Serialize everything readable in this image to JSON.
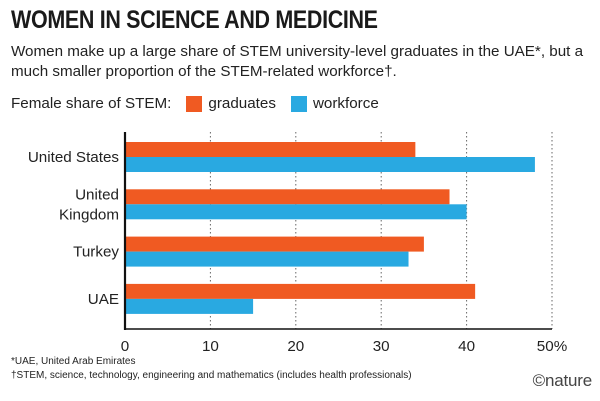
{
  "title": "WOMEN IN SCIENCE AND MEDICINE",
  "subtitle": "Women make up a large share of STEM university-level graduates in the UAE*, but a much smaller proportion of the STEM-related workforce†.",
  "legend": {
    "label": "Female share of STEM:",
    "items": [
      {
        "name": "graduates",
        "color": "#f05a22"
      },
      {
        "name": "workforce",
        "color": "#29a9e1"
      }
    ]
  },
  "chart_data": {
    "type": "bar",
    "orientation": "horizontal",
    "categories": [
      "United States",
      "United Kingdom",
      "Turkey",
      "UAE"
    ],
    "category_lines": [
      [
        "United States"
      ],
      [
        "United",
        "Kingdom"
      ],
      [
        "Turkey"
      ],
      [
        "UAE"
      ]
    ],
    "series": [
      {
        "name": "graduates",
        "color": "#f05a22",
        "values": [
          34,
          38,
          35,
          41
        ]
      },
      {
        "name": "workforce",
        "color": "#29a9e1",
        "values": [
          48,
          40,
          33.2,
          15
        ]
      }
    ],
    "xlim": [
      0,
      50
    ],
    "xticks": [
      0,
      10,
      20,
      30,
      40,
      50
    ],
    "xtick_labels": [
      "0",
      "10",
      "20",
      "30",
      "40",
      "50%"
    ],
    "grid": true
  },
  "footnotes": [
    "*UAE, United Arab Emirates",
    "†STEM, science, technology, engineering and mathematics (includes health professionals)"
  ],
  "credit": "©nature"
}
